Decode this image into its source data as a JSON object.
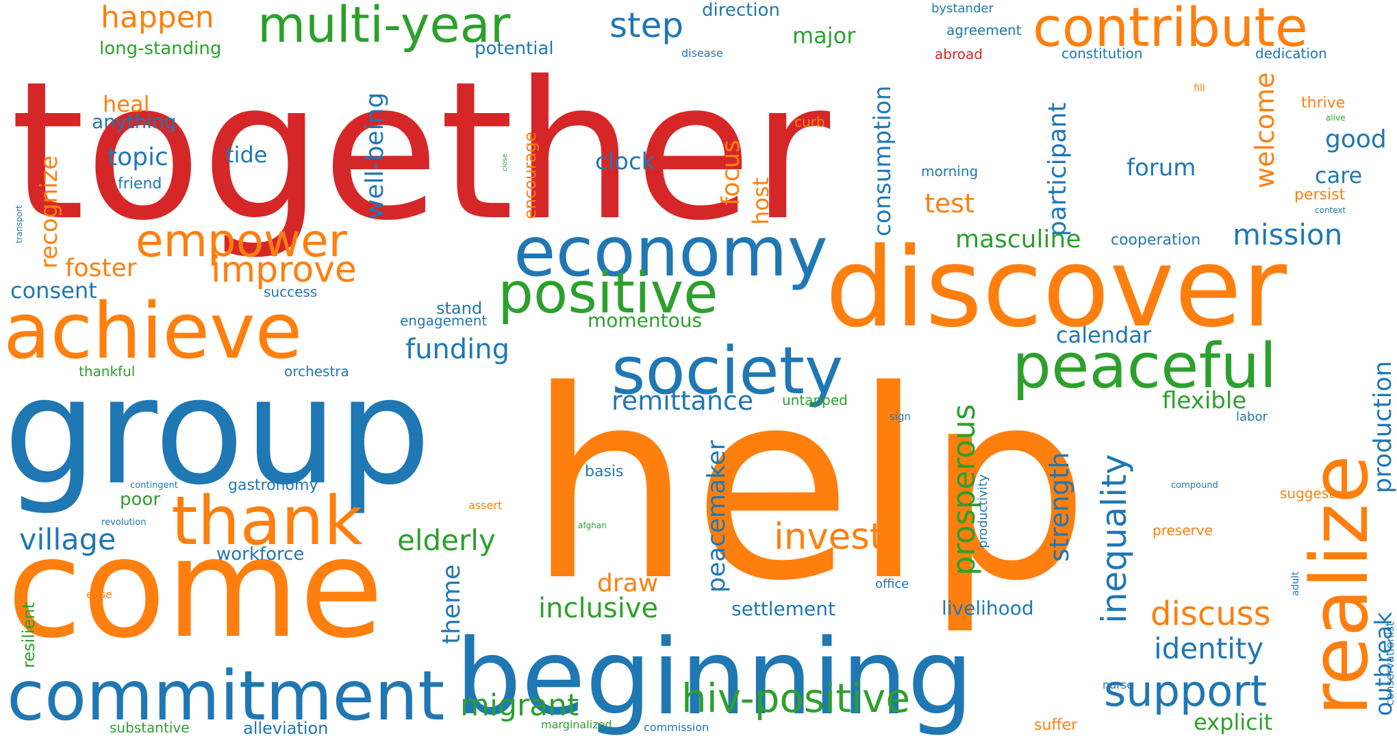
{
  "colors": {
    "background": "#ffffff",
    "red": "#d62728",
    "orange": "#ff7f0e",
    "blue": "#1f77b4",
    "green": "#2ca02c"
  },
  "words": [
    {
      "text": "together",
      "color": "red",
      "orientation": "horizontal"
    },
    {
      "text": "help",
      "color": "orange",
      "orientation": "horizontal"
    },
    {
      "text": "group",
      "color": "blue",
      "orientation": "horizontal"
    },
    {
      "text": "come",
      "color": "orange",
      "orientation": "horizontal"
    },
    {
      "text": "beginning",
      "color": "blue",
      "orientation": "horizontal"
    },
    {
      "text": "discover",
      "color": "orange",
      "orientation": "horizontal"
    },
    {
      "text": "realize",
      "color": "orange",
      "orientation": "vertical"
    },
    {
      "text": "commitment",
      "color": "blue",
      "orientation": "horizontal"
    },
    {
      "text": "achieve",
      "color": "orange",
      "orientation": "horizontal"
    },
    {
      "text": "economy",
      "color": "blue",
      "orientation": "horizontal"
    },
    {
      "text": "society",
      "color": "blue",
      "orientation": "horizontal"
    },
    {
      "text": "thank",
      "color": "orange",
      "orientation": "horizontal"
    },
    {
      "text": "contribute",
      "color": "orange",
      "orientation": "horizontal"
    },
    {
      "text": "peaceful",
      "color": "green",
      "orientation": "horizontal"
    },
    {
      "text": "positive",
      "color": "green",
      "orientation": "horizontal"
    },
    {
      "text": "multi-year",
      "color": "green",
      "orientation": "horizontal"
    },
    {
      "text": "support",
      "color": "blue",
      "orientation": "horizontal"
    },
    {
      "text": "empower",
      "color": "orange",
      "orientation": "horizontal"
    },
    {
      "text": "hiv-positive",
      "color": "green",
      "orientation": "horizontal"
    },
    {
      "text": "inequality",
      "color": "blue",
      "orientation": "vertical"
    },
    {
      "text": "invest",
      "color": "orange",
      "orientation": "horizontal"
    },
    {
      "text": "migrant",
      "color": "green",
      "orientation": "horizontal"
    },
    {
      "text": "improve",
      "color": "orange",
      "orientation": "horizontal"
    },
    {
      "text": "discuss",
      "color": "orange",
      "orientation": "horizontal"
    },
    {
      "text": "happen",
      "color": "orange",
      "orientation": "horizontal"
    },
    {
      "text": "step",
      "color": "blue",
      "orientation": "horizontal"
    },
    {
      "text": "village",
      "color": "blue",
      "orientation": "horizontal"
    },
    {
      "text": "mission",
      "color": "blue",
      "orientation": "horizontal"
    },
    {
      "text": "prosperous",
      "color": "green",
      "orientation": "vertical"
    },
    {
      "text": "elderly",
      "color": "green",
      "orientation": "horizontal"
    },
    {
      "text": "identity",
      "color": "blue",
      "orientation": "horizontal"
    },
    {
      "text": "welcome",
      "color": "orange",
      "orientation": "vertical"
    },
    {
      "text": "inclusive",
      "color": "green",
      "orientation": "horizontal"
    },
    {
      "text": "remittance",
      "color": "blue",
      "orientation": "horizontal"
    },
    {
      "text": "funding",
      "color": "blue",
      "orientation": "horizontal"
    },
    {
      "text": "production",
      "color": "blue",
      "orientation": "vertical"
    },
    {
      "text": "well-being",
      "color": "blue",
      "orientation": "vertical"
    },
    {
      "text": "participant",
      "color": "blue",
      "orientation": "vertical"
    },
    {
      "text": "peacemaker",
      "color": "blue",
      "orientation": "vertical"
    },
    {
      "text": "masculine",
      "color": "green",
      "orientation": "horizontal"
    },
    {
      "text": "consumption",
      "color": "blue",
      "orientation": "vertical"
    },
    {
      "text": "strength",
      "color": "blue",
      "orientation": "vertical"
    },
    {
      "text": "calendar",
      "color": "blue",
      "orientation": "horizontal"
    },
    {
      "text": "focus",
      "color": "orange",
      "orientation": "vertical"
    },
    {
      "text": "foster",
      "color": "orange",
      "orientation": "horizontal"
    },
    {
      "text": "flexible",
      "color": "green",
      "orientation": "horizontal"
    },
    {
      "text": "theme",
      "color": "blue",
      "orientation": "vertical"
    },
    {
      "text": "explicit",
      "color": "green",
      "orientation": "horizontal"
    },
    {
      "text": "draw",
      "color": "orange",
      "orientation": "horizontal"
    },
    {
      "text": "outbreak",
      "color": "blue",
      "orientation": "vertical"
    },
    {
      "text": "good",
      "color": "blue",
      "orientation": "horizontal"
    },
    {
      "text": "major",
      "color": "green",
      "orientation": "horizontal"
    },
    {
      "text": "clock",
      "color": "blue",
      "orientation": "horizontal"
    },
    {
      "text": "consent",
      "color": "blue",
      "orientation": "horizontal"
    },
    {
      "text": "recognize",
      "color": "orange",
      "orientation": "vertical"
    },
    {
      "text": "forum",
      "color": "blue",
      "orientation": "horizontal"
    },
    {
      "text": "care",
      "color": "blue",
      "orientation": "horizontal"
    },
    {
      "text": "topic",
      "color": "blue",
      "orientation": "horizontal"
    },
    {
      "text": "test",
      "color": "orange",
      "orientation": "horizontal"
    },
    {
      "text": "tide",
      "color": "blue",
      "orientation": "horizontal"
    },
    {
      "text": "host",
      "color": "orange",
      "orientation": "vertical"
    },
    {
      "text": "heal",
      "color": "orange",
      "orientation": "horizontal"
    },
    {
      "text": "settlement",
      "color": "blue",
      "orientation": "horizontal"
    },
    {
      "text": "livelihood",
      "color": "blue",
      "orientation": "horizontal"
    },
    {
      "text": "momentous",
      "color": "green",
      "orientation": "horizontal"
    },
    {
      "text": "anything",
      "color": "blue",
      "orientation": "horizontal"
    },
    {
      "text": "poor",
      "color": "green",
      "orientation": "horizontal"
    },
    {
      "text": "direction",
      "color": "blue",
      "orientation": "horizontal"
    },
    {
      "text": "potential",
      "color": "blue",
      "orientation": "horizontal"
    },
    {
      "text": "long-standing",
      "color": "green",
      "orientation": "horizontal"
    },
    {
      "text": "workforce",
      "color": "blue",
      "orientation": "horizontal"
    },
    {
      "text": "encourage",
      "color": "orange",
      "orientation": "vertical"
    },
    {
      "text": "stand",
      "color": "blue",
      "orientation": "horizontal"
    },
    {
      "text": "resilient",
      "color": "green",
      "orientation": "vertical"
    },
    {
      "text": "gastronomy",
      "color": "blue",
      "orientation": "horizontal"
    },
    {
      "text": "persist",
      "color": "orange",
      "orientation": "horizontal"
    },
    {
      "text": "thrive",
      "color": "orange",
      "orientation": "horizontal"
    },
    {
      "text": "alleviation",
      "color": "blue",
      "orientation": "horizontal"
    },
    {
      "text": "substantive",
      "color": "green",
      "orientation": "horizontal"
    },
    {
      "text": "cooperation",
      "color": "blue",
      "orientation": "horizontal"
    },
    {
      "text": "friend",
      "color": "blue",
      "orientation": "horizontal"
    },
    {
      "text": "basis",
      "color": "blue",
      "orientation": "horizontal"
    },
    {
      "text": "agreement",
      "color": "blue",
      "orientation": "horizontal"
    },
    {
      "text": "constitution",
      "color": "blue",
      "orientation": "horizontal"
    },
    {
      "text": "dedication",
      "color": "blue",
      "orientation": "horizontal"
    },
    {
      "text": "suffer",
      "color": "orange",
      "orientation": "horizontal"
    },
    {
      "text": "engagement",
      "color": "blue",
      "orientation": "horizontal"
    },
    {
      "text": "untapped",
      "color": "green",
      "orientation": "horizontal"
    },
    {
      "text": "success",
      "color": "blue",
      "orientation": "horizontal"
    },
    {
      "text": "abroad",
      "color": "red",
      "orientation": "horizontal"
    },
    {
      "text": "productivity",
      "color": "blue",
      "orientation": "vertical"
    },
    {
      "text": "curb",
      "color": "orange",
      "orientation": "horizontal"
    },
    {
      "text": "preserve",
      "color": "orange",
      "orientation": "horizontal"
    },
    {
      "text": "bystander",
      "color": "blue",
      "orientation": "horizontal"
    },
    {
      "text": "suggest",
      "color": "orange",
      "orientation": "horizontal"
    },
    {
      "text": "thankful",
      "color": "green",
      "orientation": "horizontal"
    },
    {
      "text": "orchestra",
      "color": "blue",
      "orientation": "horizontal"
    },
    {
      "text": "morning",
      "color": "blue",
      "orientation": "horizontal"
    },
    {
      "text": "office",
      "color": "blue",
      "orientation": "horizontal"
    },
    {
      "text": "labor",
      "color": "blue",
      "orientation": "horizontal"
    },
    {
      "text": "conservationist",
      "color": "blue",
      "orientation": "vertical"
    },
    {
      "text": "marginalized",
      "color": "green",
      "orientation": "horizontal"
    },
    {
      "text": "commission",
      "color": "blue",
      "orientation": "horizontal"
    },
    {
      "text": "assert",
      "color": "orange",
      "orientation": "horizontal"
    },
    {
      "text": "ease",
      "color": "orange",
      "orientation": "horizontal"
    },
    {
      "text": "disease",
      "color": "blue",
      "orientation": "horizontal"
    },
    {
      "text": "nurse",
      "color": "blue",
      "orientation": "horizontal"
    },
    {
      "text": "sign",
      "color": "blue",
      "orientation": "horizontal"
    },
    {
      "text": "adult",
      "color": "blue",
      "orientation": "vertical"
    },
    {
      "text": "fill",
      "color": "orange",
      "orientation": "horizontal"
    },
    {
      "text": "contingent",
      "color": "blue",
      "orientation": "horizontal"
    },
    {
      "text": "revolution",
      "color": "blue",
      "orientation": "horizontal"
    },
    {
      "text": "compound",
      "color": "blue",
      "orientation": "horizontal"
    },
    {
      "text": "transport",
      "color": "blue",
      "orientation": "vertical"
    },
    {
      "text": "context",
      "color": "blue",
      "orientation": "horizontal"
    },
    {
      "text": "afghan",
      "color": "green",
      "orientation": "horizontal"
    },
    {
      "text": "alive",
      "color": "green",
      "orientation": "horizontal"
    },
    {
      "text": "close",
      "color": "green",
      "orientation": "vertical"
    }
  ]
}
